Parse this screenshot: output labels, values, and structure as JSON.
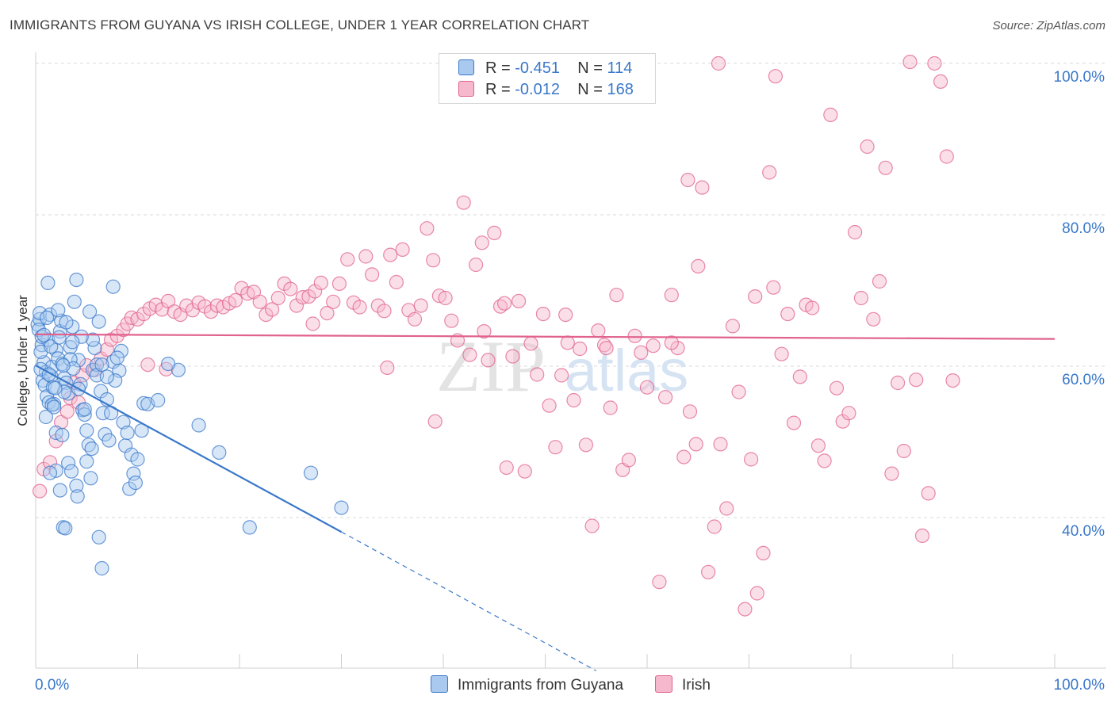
{
  "title": "IMMIGRANTS FROM GUYANA VS IRISH COLLEGE, UNDER 1 YEAR CORRELATION CHART",
  "source": "Source: ZipAtlas.com",
  "colors": {
    "blue": "#3a78c9",
    "blue_fill": "#a9c9ef",
    "pink": "#e0628d",
    "pink_fill": "#f6b8cc",
    "grid": "#d9d9d9",
    "tick_label": "#3a78c9"
  },
  "legend": {
    "r_label": "R =",
    "n_label": "N =",
    "series": [
      {
        "name": "Immigrants from Guyana",
        "r": "-0.451",
        "n": "114"
      },
      {
        "name": "Irish",
        "r": "-0.012",
        "n": "168"
      }
    ]
  },
  "watermark": {
    "zip": "ZIP",
    "atlas": "atlas"
  },
  "chart_data": {
    "type": "scatter",
    "title": "IMMIGRANTS FROM GUYANA VS IRISH COLLEGE, UNDER 1 YEAR CORRELATION CHART",
    "xlabel": "",
    "ylabel": "College, Under 1 year",
    "xlim": [
      0,
      100
    ],
    "ylim": [
      20,
      101
    ],
    "x_tick_labels": [
      "0.0%",
      "100.0%"
    ],
    "y_ticks": [
      {
        "value": 40,
        "label": "40.0%"
      },
      {
        "value": 60,
        "label": "60.0%"
      },
      {
        "value": 80,
        "label": "80.0%"
      },
      {
        "value": 100,
        "label": "100.0%"
      }
    ],
    "grid": true,
    "series": [
      {
        "name": "Immigrants from Guyana",
        "trend": {
          "x0": 0,
          "y0": 60.1,
          "x1": 30,
          "y1": 38.1,
          "dash_to_x": 55
        },
        "points": [
          [
            0.2,
            65.5
          ],
          [
            0.4,
            66.2
          ],
          [
            0.6,
            62.8
          ],
          [
            0.8,
            60.5
          ],
          [
            1.0,
            59.2
          ],
          [
            1.2,
            63.5
          ],
          [
            0.3,
            64.8
          ],
          [
            0.5,
            61.9
          ],
          [
            0.7,
            58.1
          ],
          [
            0.9,
            57.5
          ],
          [
            1.1,
            56.0
          ],
          [
            1.3,
            55.2
          ],
          [
            0.4,
            67.0
          ],
          [
            0.6,
            63.9
          ],
          [
            1.4,
            66.8
          ],
          [
            1.5,
            58.7
          ],
          [
            1.6,
            59.9
          ],
          [
            1.7,
            57.2
          ],
          [
            1.8,
            55.0
          ],
          [
            2.0,
            62.1
          ],
          [
            2.2,
            61.0
          ],
          [
            2.4,
            64.6
          ],
          [
            2.5,
            66.0
          ],
          [
            2.6,
            60.3
          ],
          [
            2.8,
            58.4
          ],
          [
            3.0,
            57.8
          ],
          [
            3.2,
            56.4
          ],
          [
            3.4,
            62.5
          ],
          [
            1.2,
            71.0
          ],
          [
            2.2,
            67.4
          ],
          [
            3.6,
            65.2
          ],
          [
            3.8,
            68.5
          ],
          [
            4.0,
            71.4
          ],
          [
            4.2,
            60.8
          ],
          [
            4.4,
            57.6
          ],
          [
            4.6,
            54.2
          ],
          [
            4.8,
            53.6
          ],
          [
            5.0,
            47.4
          ],
          [
            5.2,
            49.6
          ],
          [
            5.4,
            45.2
          ],
          [
            5.6,
            59.5
          ],
          [
            5.8,
            62.4
          ],
          [
            6.0,
            60.2
          ],
          [
            6.4,
            56.7
          ],
          [
            6.6,
            53.8
          ],
          [
            6.8,
            51.0
          ],
          [
            7.0,
            55.6
          ],
          [
            7.2,
            50.2
          ],
          [
            7.4,
            53.8
          ],
          [
            7.6,
            60.6
          ],
          [
            8.2,
            59.4
          ],
          [
            8.4,
            62.0
          ],
          [
            8.6,
            52.6
          ],
          [
            8.8,
            49.5
          ],
          [
            9.0,
            51.2
          ],
          [
            9.2,
            43.8
          ],
          [
            9.4,
            48.3
          ],
          [
            9.6,
            45.8
          ],
          [
            9.8,
            44.6
          ],
          [
            10.0,
            47.7
          ],
          [
            10.4,
            51.5
          ],
          [
            10.6,
            55.1
          ],
          [
            11.0,
            55.0
          ],
          [
            1.6,
            54.9
          ],
          [
            1.8,
            54.6
          ],
          [
            1.0,
            53.3
          ],
          [
            2.0,
            51.2
          ],
          [
            2.6,
            50.9
          ],
          [
            3.2,
            47.2
          ],
          [
            3.5,
            46.1
          ],
          [
            6.2,
            37.4
          ],
          [
            6.5,
            33.3
          ],
          [
            2.7,
            38.7
          ],
          [
            2.9,
            38.6
          ],
          [
            2.4,
            43.6
          ],
          [
            4.0,
            44.2
          ],
          [
            4.1,
            42.8
          ],
          [
            7.6,
            70.5
          ],
          [
            6.2,
            65.9
          ],
          [
            5.3,
            67.2
          ],
          [
            5.6,
            63.5
          ],
          [
            4.5,
            63.9
          ],
          [
            3.6,
            63.2
          ],
          [
            3.4,
            60.9
          ],
          [
            2.8,
            56.6
          ],
          [
            2.0,
            46.2
          ],
          [
            1.4,
            45.9
          ],
          [
            5.0,
            51.5
          ],
          [
            1.9,
            57.1
          ],
          [
            3.7,
            59.7
          ],
          [
            4.2,
            57.0
          ],
          [
            4.8,
            54.3
          ],
          [
            6.0,
            58.8
          ],
          [
            6.5,
            60.2
          ],
          [
            7.8,
            58.1
          ],
          [
            8.0,
            61.1
          ],
          [
            2.7,
            60.1
          ],
          [
            1.5,
            62.6
          ],
          [
            2.3,
            63.8
          ],
          [
            1.1,
            66.4
          ],
          [
            0.8,
            64.1
          ],
          [
            0.5,
            59.6
          ],
          [
            1.3,
            58.9
          ],
          [
            3.0,
            65.8
          ],
          [
            7.0,
            58.6
          ],
          [
            14.0,
            59.5
          ],
          [
            16.0,
            52.2
          ],
          [
            18.0,
            48.6
          ],
          [
            21.0,
            38.7
          ],
          [
            27.0,
            45.9
          ],
          [
            30.0,
            41.3
          ],
          [
            12.0,
            55.5
          ],
          [
            13.0,
            60.3
          ],
          [
            5.5,
            49.1
          ]
        ]
      },
      {
        "name": "Irish",
        "trend": {
          "x0": 0,
          "y0": 64.2,
          "x1": 100,
          "y1": 63.6
        },
        "points": [
          [
            0.4,
            43.5
          ],
          [
            0.8,
            46.4
          ],
          [
            1.4,
            47.3
          ],
          [
            2.0,
            50.1
          ],
          [
            2.5,
            52.6
          ],
          [
            3.4,
            55.8
          ],
          [
            3.8,
            57.8
          ],
          [
            4.2,
            55.2
          ],
          [
            4.6,
            58.8
          ],
          [
            5.0,
            60.1
          ],
          [
            5.8,
            59.5
          ],
          [
            6.4,
            61.0
          ],
          [
            7.0,
            62.2
          ],
          [
            7.4,
            63.5
          ],
          [
            8.0,
            64.0
          ],
          [
            8.6,
            64.8
          ],
          [
            9.0,
            65.6
          ],
          [
            9.4,
            66.4
          ],
          [
            10.0,
            66.2
          ],
          [
            10.6,
            66.9
          ],
          [
            11.2,
            67.6
          ],
          [
            11.8,
            68.1
          ],
          [
            12.4,
            67.5
          ],
          [
            13.0,
            68.6
          ],
          [
            13.6,
            67.2
          ],
          [
            14.2,
            66.8
          ],
          [
            14.8,
            68.0
          ],
          [
            15.4,
            67.4
          ],
          [
            16.0,
            68.4
          ],
          [
            16.6,
            67.9
          ],
          [
            17.2,
            67.2
          ],
          [
            17.8,
            68.0
          ],
          [
            18.4,
            67.8
          ],
          [
            19.0,
            68.3
          ],
          [
            19.6,
            68.7
          ],
          [
            20.2,
            70.3
          ],
          [
            20.8,
            69.6
          ],
          [
            21.4,
            69.8
          ],
          [
            22.0,
            68.5
          ],
          [
            22.6,
            66.8
          ],
          [
            23.2,
            67.5
          ],
          [
            23.8,
            69.0
          ],
          [
            24.4,
            70.9
          ],
          [
            25.0,
            70.2
          ],
          [
            25.6,
            68.0
          ],
          [
            26.2,
            69.1
          ],
          [
            26.8,
            69.2
          ],
          [
            27.4,
            69.9
          ],
          [
            28.0,
            71.0
          ],
          [
            28.6,
            67.0
          ],
          [
            29.2,
            68.5
          ],
          [
            29.8,
            70.9
          ],
          [
            30.6,
            74.1
          ],
          [
            31.2,
            68.4
          ],
          [
            31.8,
            67.8
          ],
          [
            32.4,
            74.5
          ],
          [
            33.0,
            72.1
          ],
          [
            33.6,
            68.0
          ],
          [
            34.2,
            67.3
          ],
          [
            34.8,
            74.7
          ],
          [
            35.4,
            71.1
          ],
          [
            36.0,
            75.4
          ],
          [
            36.6,
            67.4
          ],
          [
            37.2,
            66.2
          ],
          [
            37.8,
            68.0
          ],
          [
            38.4,
            78.2
          ],
          [
            39.0,
            74.0
          ],
          [
            39.6,
            69.3
          ],
          [
            40.2,
            69.0
          ],
          [
            40.8,
            66.0
          ],
          [
            41.4,
            63.4
          ],
          [
            42.0,
            81.6
          ],
          [
            42.6,
            61.5
          ],
          [
            43.2,
            73.4
          ],
          [
            43.8,
            76.3
          ],
          [
            44.4,
            60.8
          ],
          [
            45.0,
            77.6
          ],
          [
            45.6,
            67.9
          ],
          [
            46.2,
            46.6
          ],
          [
            46.8,
            61.3
          ],
          [
            47.4,
            68.6
          ],
          [
            48.0,
            46.1
          ],
          [
            48.6,
            63.0
          ],
          [
            49.2,
            58.9
          ],
          [
            49.8,
            66.9
          ],
          [
            50.4,
            54.8
          ],
          [
            51.0,
            49.3
          ],
          [
            51.6,
            58.8
          ],
          [
            52.2,
            63.1
          ],
          [
            52.8,
            55.5
          ],
          [
            53.4,
            62.3
          ],
          [
            54.0,
            49.6
          ],
          [
            54.6,
            38.9
          ],
          [
            55.2,
            64.7
          ],
          [
            55.8,
            62.8
          ],
          [
            56.4,
            54.5
          ],
          [
            57.0,
            69.4
          ],
          [
            57.6,
            46.3
          ],
          [
            58.2,
            47.6
          ],
          [
            58.8,
            64.0
          ],
          [
            59.4,
            61.8
          ],
          [
            60.0,
            57.2
          ],
          [
            60.6,
            62.7
          ],
          [
            61.2,
            31.5
          ],
          [
            61.8,
            55.9
          ],
          [
            62.4,
            69.4
          ],
          [
            63.0,
            62.4
          ],
          [
            63.6,
            48.0
          ],
          [
            64.2,
            54.0
          ],
          [
            64.8,
            49.7
          ],
          [
            65.4,
            83.6
          ],
          [
            66.0,
            32.8
          ],
          [
            66.6,
            38.8
          ],
          [
            67.2,
            49.7
          ],
          [
            67.8,
            41.2
          ],
          [
            68.4,
            65.3
          ],
          [
            69.0,
            56.6
          ],
          [
            69.6,
            27.9
          ],
          [
            70.2,
            47.7
          ],
          [
            70.8,
            30.0
          ],
          [
            71.4,
            35.3
          ],
          [
            72.0,
            85.6
          ],
          [
            72.6,
            98.3
          ],
          [
            73.2,
            61.6
          ],
          [
            73.8,
            66.9
          ],
          [
            74.4,
            52.5
          ],
          [
            75.0,
            58.6
          ],
          [
            75.6,
            68.1
          ],
          [
            76.2,
            67.7
          ],
          [
            76.8,
            49.5
          ],
          [
            77.4,
            47.5
          ],
          [
            78.0,
            93.2
          ],
          [
            78.6,
            57.1
          ],
          [
            79.2,
            52.7
          ],
          [
            79.8,
            53.8
          ],
          [
            80.4,
            77.7
          ],
          [
            81.0,
            69.0
          ],
          [
            81.6,
            89.0
          ],
          [
            82.2,
            66.2
          ],
          [
            82.8,
            71.2
          ],
          [
            83.4,
            86.2
          ],
          [
            84.0,
            45.8
          ],
          [
            84.6,
            57.8
          ],
          [
            85.2,
            48.8
          ],
          [
            85.8,
            100.2
          ],
          [
            86.4,
            58.2
          ],
          [
            87.0,
            37.6
          ],
          [
            87.6,
            43.2
          ],
          [
            88.2,
            100.0
          ],
          [
            88.8,
            97.6
          ],
          [
            89.4,
            87.7
          ],
          [
            90.0,
            58.1
          ],
          [
            62.4,
            63.1
          ],
          [
            64.0,
            84.6
          ],
          [
            65.0,
            73.2
          ],
          [
            67.0,
            100.0
          ],
          [
            70.6,
            69.2
          ],
          [
            72.4,
            70.4
          ],
          [
            56.0,
            62.4
          ],
          [
            44.0,
            64.6
          ],
          [
            39.2,
            52.7
          ],
          [
            34.5,
            59.8
          ],
          [
            52.0,
            66.8
          ],
          [
            46.0,
            68.3
          ],
          [
            27.2,
            65.6
          ],
          [
            11.0,
            60.2
          ],
          [
            12.8,
            59.6
          ],
          [
            3.1,
            54.0
          ]
        ]
      }
    ]
  }
}
